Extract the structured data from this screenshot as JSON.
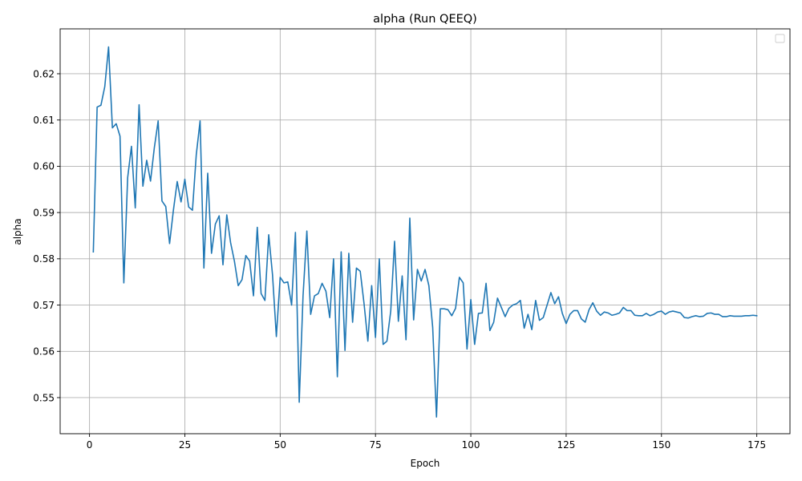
{
  "chart_data": {
    "type": "line",
    "title": "alpha (Run QEEQ)",
    "xlabel": "Epoch",
    "ylabel": "alpha",
    "xlim": [
      -7.7,
      183.7
    ],
    "ylim": [
      0.5422,
      0.6297
    ],
    "xticks": [
      0,
      25,
      50,
      75,
      100,
      125,
      150,
      175
    ],
    "yticks": [
      0.55,
      0.56,
      0.57,
      0.58,
      0.59,
      0.6,
      0.61,
      0.62
    ],
    "ytick_labels": [
      "0.55",
      "0.56",
      "0.57",
      "0.58",
      "0.59",
      "0.60",
      "0.61",
      "0.62"
    ],
    "grid": true,
    "legend": {
      "placement": "top-right",
      "entries": []
    },
    "line_color": "#1f77b4",
    "series": [
      {
        "x": [
          1,
          2,
          3,
          4,
          5,
          6,
          7,
          8,
          9,
          10,
          11,
          12,
          13,
          14,
          15,
          16,
          17,
          18,
          19,
          20,
          21,
          22,
          23,
          24,
          25,
          26,
          27,
          28,
          29,
          30,
          31,
          32,
          33,
          34,
          35,
          36,
          37,
          38,
          39,
          40,
          41,
          42,
          43,
          44,
          45,
          46,
          47,
          48,
          49,
          50,
          51,
          52,
          53,
          54,
          55,
          56,
          57,
          58,
          59,
          60,
          61,
          62,
          63,
          64,
          65,
          66,
          67,
          68,
          69,
          70,
          71,
          72,
          73,
          74,
          75,
          76,
          77,
          78,
          79,
          80,
          81,
          82,
          83,
          84,
          85,
          86,
          87,
          88,
          89,
          90,
          91,
          92,
          93,
          94,
          95,
          96,
          97,
          98,
          99,
          100,
          101,
          102,
          103,
          104,
          105,
          106,
          107,
          108,
          109,
          110,
          111,
          112,
          113,
          114,
          115,
          116,
          117,
          118,
          119,
          120,
          121,
          122,
          123,
          124,
          125,
          126,
          127,
          128,
          129,
          130,
          131,
          132,
          133,
          134,
          135,
          136,
          137,
          138,
          139,
          140,
          141,
          142,
          143,
          144,
          145,
          146,
          147,
          148,
          149,
          150,
          151,
          152,
          153,
          154,
          155,
          156,
          157,
          158,
          159,
          160,
          161,
          162,
          163,
          164,
          165,
          166,
          167,
          168,
          169,
          170,
          171,
          172,
          173,
          174,
          175
        ],
        "values": [
          0.5815,
          0.6128,
          0.6132,
          0.6172,
          0.6258,
          0.6083,
          0.6092,
          0.6065,
          0.5748,
          0.5975,
          0.6043,
          0.591,
          0.6133,
          0.5957,
          0.6013,
          0.5968,
          0.604,
          0.6098,
          0.5925,
          0.5913,
          0.5833,
          0.5905,
          0.5967,
          0.5923,
          0.5972,
          0.5912,
          0.5905,
          0.6025,
          0.6098,
          0.578,
          0.5985,
          0.5812,
          0.5875,
          0.5893,
          0.5787,
          0.5895,
          0.5835,
          0.5795,
          0.5742,
          0.5755,
          0.5807,
          0.5795,
          0.572,
          0.5868,
          0.5725,
          0.571,
          0.5852,
          0.5765,
          0.5632,
          0.576,
          0.5748,
          0.575,
          0.57,
          0.5857,
          0.549,
          0.572,
          0.586,
          0.568,
          0.572,
          0.5725,
          0.5747,
          0.573,
          0.5673,
          0.58,
          0.5545,
          0.5815,
          0.5602,
          0.5812,
          0.5663,
          0.578,
          0.5773,
          0.5703,
          0.5622,
          0.5742,
          0.563,
          0.58,
          0.5615,
          0.5622,
          0.5687,
          0.5838,
          0.5665,
          0.5763,
          0.5625,
          0.5888,
          0.5668,
          0.5777,
          0.5752,
          0.5777,
          0.5742,
          0.5652,
          0.5458,
          0.5692,
          0.5692,
          0.569,
          0.5677,
          0.5693,
          0.576,
          0.5748,
          0.5605,
          0.5712,
          0.5615,
          0.5682,
          0.5683,
          0.5747,
          0.5645,
          0.5663,
          0.5715,
          0.5695,
          0.5675,
          0.5693,
          0.57,
          0.5703,
          0.571,
          0.565,
          0.568,
          0.5647,
          0.571,
          0.5667,
          0.5673,
          0.57,
          0.5727,
          0.5703,
          0.5718,
          0.5682,
          0.566,
          0.568,
          0.5688,
          0.5688,
          0.567,
          0.5663,
          0.569,
          0.5705,
          0.5687,
          0.5678,
          0.5685,
          0.5683,
          0.5678,
          0.568,
          0.5683,
          0.5695,
          0.5688,
          0.5688,
          0.5678,
          0.5677,
          0.5677,
          0.5682,
          0.5677,
          0.568,
          0.5685,
          0.5687,
          0.568,
          0.5685,
          0.5687,
          0.5685,
          0.5683,
          0.5673,
          0.5672,
          0.5675,
          0.5677,
          0.5675,
          0.5676,
          0.5682,
          0.5683,
          0.568,
          0.568,
          0.5675,
          0.5675,
          0.5677,
          0.5676,
          0.5676,
          0.5676,
          0.5677,
          0.5677,
          0.5678,
          0.5677
        ]
      }
    ]
  }
}
